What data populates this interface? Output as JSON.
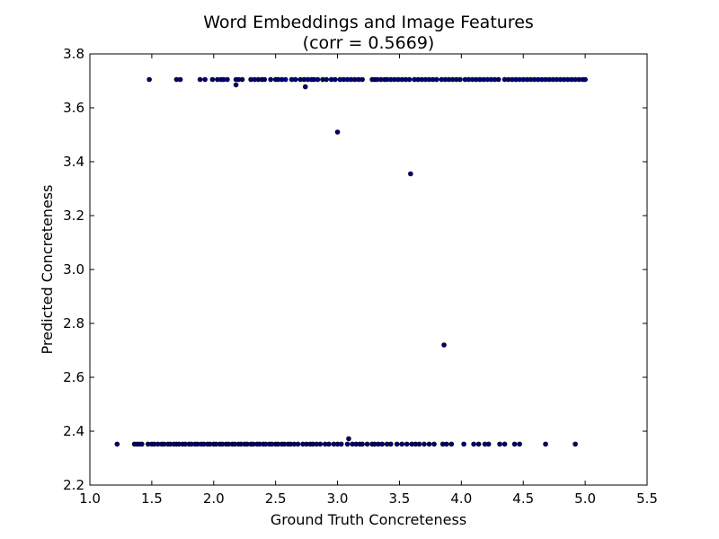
{
  "chart_data": {
    "type": "scatter",
    "title_line1": "Word Embeddings and Image Features",
    "title_line2": "(corr = 0.5669)",
    "xlabel": "Ground Truth Concreteness",
    "ylabel": "Predicted Concreteness",
    "xlim": [
      1.0,
      5.5
    ],
    "ylim": [
      2.2,
      3.8
    ],
    "xticks": [
      1.0,
      1.5,
      2.0,
      2.5,
      3.0,
      3.5,
      4.0,
      4.5,
      5.0,
      5.5
    ],
    "yticks": [
      2.2,
      2.4,
      2.6,
      2.8,
      3.0,
      3.2,
      3.4,
      3.6,
      3.8
    ],
    "xtick_labels": [
      "1.0",
      "1.5",
      "2.0",
      "2.5",
      "3.0",
      "3.5",
      "4.0",
      "4.5",
      "5.0",
      "5.5"
    ],
    "ytick_labels": [
      "2.2",
      "2.4",
      "2.6",
      "2.8",
      "3.0",
      "3.2",
      "3.4",
      "3.6",
      "3.8"
    ],
    "marker_color": "#00007f",
    "points": {
      "x": [
        1.48,
        1.7,
        1.73,
        1.89,
        1.93,
        1.99,
        2.03,
        2.06,
        2.08,
        2.11,
        2.18,
        2.2,
        2.23,
        2.3,
        2.33,
        2.36,
        2.39,
        2.41,
        2.46,
        2.5,
        2.52,
        2.55,
        2.58,
        2.63,
        2.66,
        2.7,
        2.73,
        2.76,
        2.79,
        2.81,
        2.84,
        2.88,
        2.91,
        2.95,
        2.98,
        3.02,
        3.05,
        3.08,
        3.11,
        3.14,
        3.17,
        3.2,
        3.28,
        3.3,
        3.32,
        3.35,
        3.38,
        3.4,
        3.43,
        3.46,
        3.49,
        3.52,
        3.55,
        3.58,
        3.62,
        3.65,
        3.68,
        3.71,
        3.74,
        3.77,
        3.8,
        3.84,
        3.87,
        3.9,
        3.93,
        3.96,
        3.99,
        4.03,
        4.06,
        4.09,
        4.12,
        4.15,
        4.18,
        4.21,
        4.24,
        4.27,
        4.3,
        4.35,
        4.38,
        4.41,
        4.44,
        4.47,
        4.5,
        4.53,
        4.56,
        4.59,
        4.62,
        4.65,
        4.68,
        4.71,
        4.74,
        4.77,
        4.8,
        4.83,
        4.86,
        4.89,
        4.92,
        4.95,
        4.98,
        5.0,
        2.18,
        2.74,
        3.0,
        3.59,
        3.86,
        3.09,
        1.22,
        1.36,
        1.38,
        1.4,
        1.42,
        1.47,
        1.5,
        1.52,
        1.55,
        1.58,
        1.6,
        1.63,
        1.65,
        1.68,
        1.7,
        1.72,
        1.75,
        1.77,
        1.8,
        1.82,
        1.85,
        1.87,
        1.9,
        1.92,
        1.95,
        1.97,
        2.0,
        2.02,
        2.05,
        2.07,
        2.1,
        2.12,
        2.15,
        2.17,
        2.2,
        2.22,
        2.25,
        2.27,
        2.3,
        2.32,
        2.35,
        2.37,
        2.4,
        2.42,
        2.45,
        2.47,
        2.5,
        2.52,
        2.55,
        2.57,
        2.6,
        2.62,
        2.65,
        2.68,
        2.72,
        2.75,
        2.78,
        2.8,
        2.83,
        2.86,
        2.9,
        2.93,
        2.97,
        3.0,
        3.03,
        3.08,
        3.12,
        3.15,
        3.18,
        3.2,
        3.24,
        3.28,
        3.3,
        3.33,
        3.36,
        3.4,
        3.43,
        3.48,
        3.52,
        3.56,
        3.6,
        3.63,
        3.66,
        3.7,
        3.74,
        3.78,
        3.85,
        3.88,
        3.92,
        4.02,
        4.1,
        4.14,
        4.19,
        4.22,
        4.31,
        4.35,
        4.43,
        4.47,
        4.68,
        4.92
      ],
      "y": [
        3.705,
        3.705,
        3.705,
        3.705,
        3.705,
        3.705,
        3.705,
        3.705,
        3.705,
        3.705,
        3.705,
        3.705,
        3.705,
        3.705,
        3.705,
        3.705,
        3.705,
        3.705,
        3.705,
        3.705,
        3.705,
        3.705,
        3.705,
        3.705,
        3.705,
        3.705,
        3.705,
        3.705,
        3.705,
        3.705,
        3.705,
        3.705,
        3.705,
        3.705,
        3.705,
        3.705,
        3.705,
        3.705,
        3.705,
        3.705,
        3.705,
        3.705,
        3.705,
        3.705,
        3.705,
        3.705,
        3.705,
        3.705,
        3.705,
        3.705,
        3.705,
        3.705,
        3.705,
        3.705,
        3.705,
        3.705,
        3.705,
        3.705,
        3.705,
        3.705,
        3.705,
        3.705,
        3.705,
        3.705,
        3.705,
        3.705,
        3.705,
        3.705,
        3.705,
        3.705,
        3.705,
        3.705,
        3.705,
        3.705,
        3.705,
        3.705,
        3.705,
        3.705,
        3.705,
        3.705,
        3.705,
        3.705,
        3.705,
        3.705,
        3.705,
        3.705,
        3.705,
        3.705,
        3.705,
        3.705,
        3.705,
        3.705,
        3.705,
        3.705,
        3.705,
        3.705,
        3.705,
        3.705,
        3.705,
        3.705,
        3.685,
        3.678,
        3.51,
        3.355,
        2.72,
        2.372,
        2.352,
        2.352,
        2.352,
        2.352,
        2.352,
        2.352,
        2.352,
        2.352,
        2.352,
        2.352,
        2.352,
        2.352,
        2.352,
        2.352,
        2.352,
        2.352,
        2.352,
        2.352,
        2.352,
        2.352,
        2.352,
        2.352,
        2.352,
        2.352,
        2.352,
        2.352,
        2.352,
        2.352,
        2.352,
        2.352,
        2.352,
        2.352,
        2.352,
        2.352,
        2.352,
        2.352,
        2.352,
        2.352,
        2.352,
        2.352,
        2.352,
        2.352,
        2.352,
        2.352,
        2.352,
        2.352,
        2.352,
        2.352,
        2.352,
        2.352,
        2.352,
        2.352,
        2.352,
        2.352,
        2.352,
        2.352,
        2.352,
        2.352,
        2.352,
        2.352,
        2.352,
        2.352,
        2.352,
        2.352,
        2.352,
        2.352,
        2.352,
        2.352,
        2.352,
        2.352,
        2.352,
        2.352,
        2.352,
        2.352,
        2.352,
        2.352,
        2.352,
        2.352,
        2.352,
        2.352,
        2.352,
        2.352,
        2.352,
        2.352,
        2.352,
        2.352,
        2.352,
        2.352,
        2.352,
        2.352,
        2.352,
        2.352,
        2.352,
        2.352,
        2.352,
        2.352,
        2.352,
        2.352,
        2.352,
        2.352
      ]
    }
  }
}
